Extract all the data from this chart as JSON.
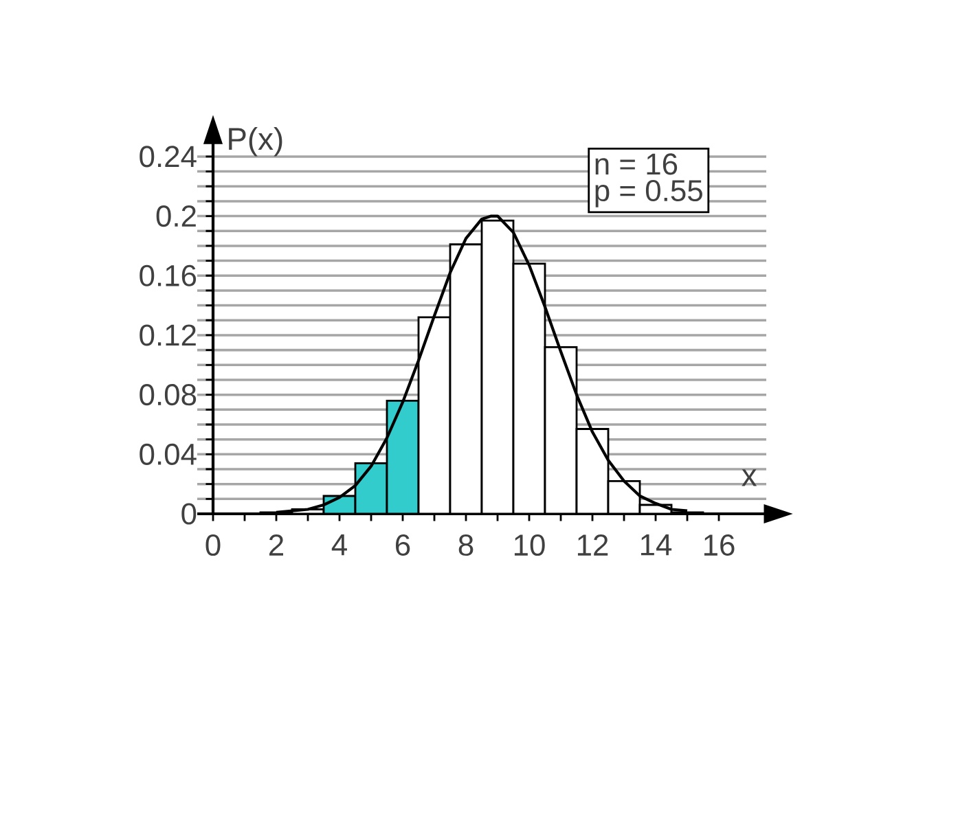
{
  "chart_data": {
    "type": "histogram",
    "xlabel": "x",
    "ylabel": "P(x)",
    "annotations": [
      "n = 16",
      "p = 0.55"
    ],
    "bins": [
      1.5,
      2.5,
      3.5,
      4.5,
      5.5,
      6.5,
      7.5,
      8.5,
      9.5,
      10.5,
      11.5,
      12.5,
      13.5,
      14.5,
      15.5
    ],
    "values": [
      0.001,
      0.003,
      0.012,
      0.034,
      0.076,
      0.132,
      0.181,
      0.197,
      0.168,
      0.112,
      0.057,
      0.022,
      0.006,
      0.001
    ],
    "colors": [
      "#ffffff",
      "#ffffff",
      "#33cccc",
      "#33cccc",
      "#33cccc",
      "#ffffff",
      "#ffffff",
      "#ffffff",
      "#ffffff",
      "#ffffff",
      "#ffffff",
      "#ffffff",
      "#ffffff",
      "#ffffff"
    ],
    "series": [
      {
        "type": "line",
        "color": "#000000",
        "x": [
          2,
          3,
          3.5,
          4,
          4.5,
          5,
          5.5,
          6,
          6.5,
          7,
          7.5,
          8,
          8.5,
          8.8,
          9,
          9.5,
          10,
          10.5,
          11,
          11.5,
          12,
          12.5,
          13,
          13.5,
          14,
          14.5,
          15
        ],
        "values": [
          0.001,
          0.003,
          0.006,
          0.011,
          0.019,
          0.032,
          0.051,
          0.075,
          0.103,
          0.133,
          0.162,
          0.185,
          0.198,
          0.2,
          0.2,
          0.189,
          0.167,
          0.139,
          0.109,
          0.08,
          0.055,
          0.036,
          0.022,
          0.012,
          0.007,
          0.003,
          0.002
        ]
      }
    ],
    "xlim": [
      -0.5,
      17.5
    ],
    "ylim": [
      0,
      0.25
    ],
    "xticks": [
      0,
      {
        "value": 1,
        "label": null
      },
      2,
      {
        "value": 3,
        "label": null
      },
      4,
      {
        "value": 5,
        "label": null
      },
      6,
      {
        "value": 7,
        "label": null
      },
      8,
      {
        "value": 9,
        "label": null
      },
      10,
      {
        "value": 11,
        "label": null
      },
      12,
      {
        "value": 13,
        "label": null
      },
      14,
      {
        "value": 15,
        "label": null
      },
      16
    ],
    "yticks": [
      0,
      {
        "value": 0.01,
        "label": null
      },
      {
        "value": 0.02,
        "label": null
      },
      {
        "value": 0.03,
        "label": null
      },
      0.04,
      {
        "value": 0.05,
        "label": null
      },
      {
        "value": 0.06,
        "label": null
      },
      {
        "value": 0.07,
        "label": null
      },
      0.08,
      {
        "value": 0.09,
        "label": null
      },
      {
        "value": 0.1,
        "label": null
      },
      {
        "value": 0.11,
        "label": null
      },
      0.12,
      {
        "value": 0.13,
        "label": null
      },
      {
        "value": 0.14,
        "label": null
      },
      {
        "value": 0.15,
        "label": null
      },
      0.16,
      {
        "value": 0.17,
        "label": null
      },
      {
        "value": 0.18,
        "label": null
      },
      {
        "value": 0.19,
        "label": null
      },
      0.2,
      {
        "value": 0.21,
        "label": null
      },
      {
        "value": 0.22,
        "label": null
      },
      {
        "value": 0.23,
        "label": null
      },
      0.24
    ],
    "grid": "y"
  }
}
